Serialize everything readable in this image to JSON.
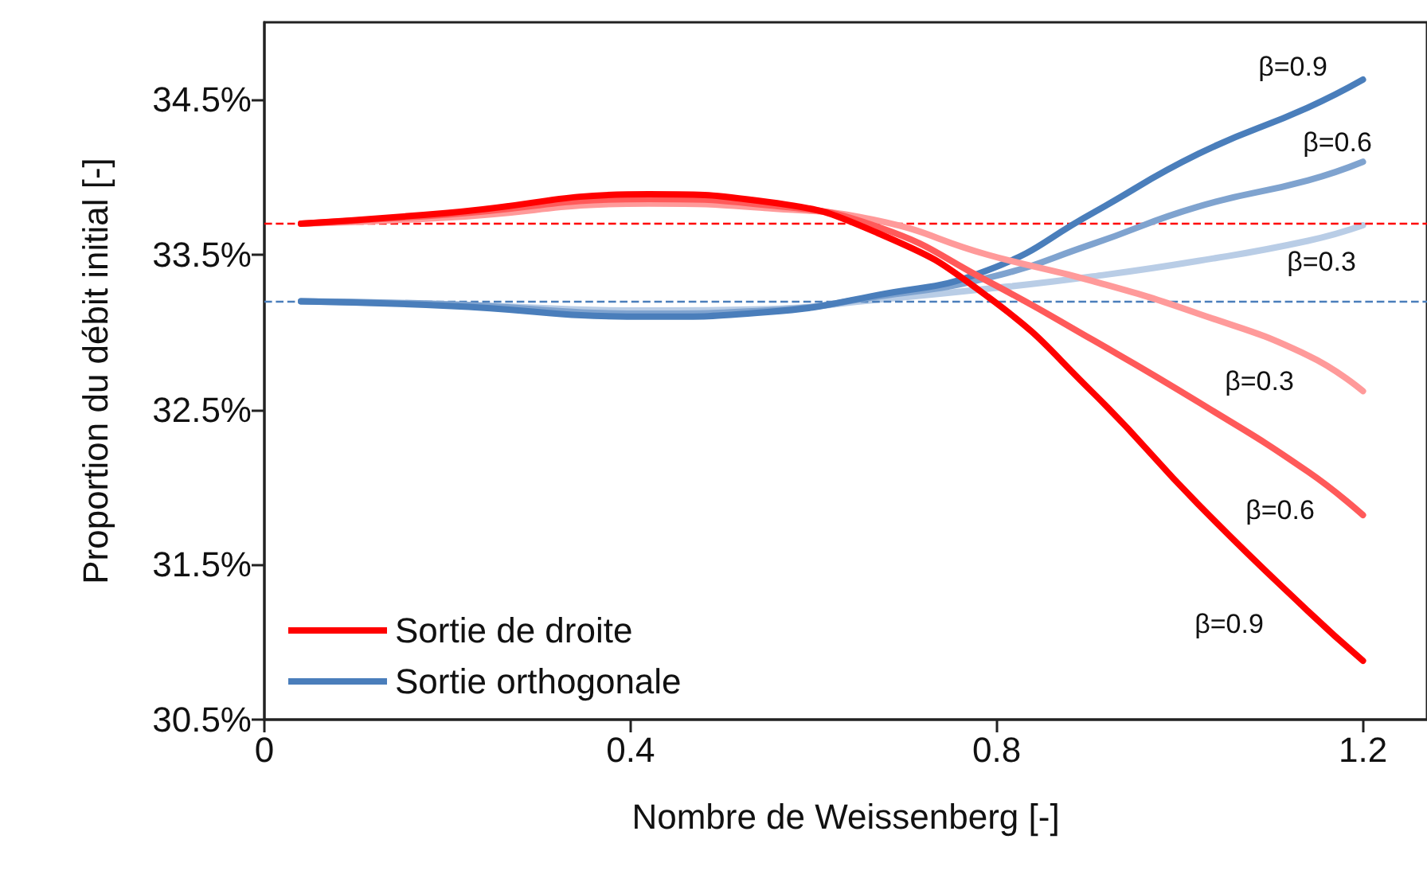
{
  "chart_data": {
    "type": "line",
    "xlabel": "Nombre de Weissenberg [-]",
    "ylabel": "Proportion du débit initial [-]",
    "x": [
      0.04,
      0.2,
      0.42,
      0.55,
      0.67,
      0.79,
      0.905,
      1.02,
      1.14,
      1.2
    ],
    "series": [
      {
        "name": "Sortie de droite",
        "color": "#ff0000",
        "values": [
          33.7,
          33.77,
          33.89,
          33.84,
          33.64,
          33.23,
          32.61,
          31.89,
          31.2,
          30.88
        ]
      },
      {
        "color": "#ff5a5a",
        "values": [
          33.7,
          33.76,
          33.86,
          33.82,
          33.68,
          33.33,
          32.95,
          32.55,
          32.1,
          31.82
        ]
      },
      {
        "color": "#ff9a9a",
        "values": [
          33.7,
          33.74,
          33.83,
          33.8,
          33.72,
          33.5,
          33.33,
          33.12,
          32.85,
          32.62
        ]
      },
      {
        "name": "Sortie orthogonale",
        "color": "#4a7ebb",
        "values": [
          33.2,
          33.17,
          33.1,
          33.13,
          33.24,
          33.4,
          33.77,
          34.15,
          34.45,
          34.63
        ]
      },
      {
        "color": "#7fa3cf",
        "values": [
          33.2,
          33.18,
          33.12,
          33.14,
          33.23,
          33.35,
          33.57,
          33.81,
          33.98,
          34.1
        ]
      },
      {
        "color": "#b9cde6",
        "values": [
          33.2,
          33.18,
          33.14,
          33.15,
          33.21,
          33.28,
          33.36,
          33.46,
          33.59,
          33.69
        ]
      }
    ],
    "xlim": [
      0,
      1.27
    ],
    "xticks": [
      0,
      0.4,
      0.8,
      1.2
    ],
    "ylim": [
      30.5,
      35
    ],
    "yticks": [
      {
        "value": 30.5,
        "label": "30.5%"
      },
      {
        "value": 31.5,
        "label": "31.5%"
      },
      {
        "value": 32.5,
        "label": "32.5%"
      },
      {
        "value": 33.5,
        "label": "33.5%"
      },
      {
        "value": 34.5,
        "label": "34.5%"
      }
    ],
    "ref_lines": [
      {
        "axis": "y",
        "value": 33.7,
        "color": "#ff0000",
        "line_style": "dashed"
      },
      {
        "axis": "y",
        "value": 33.2,
        "color": "#4a7ebb",
        "line_style": "dashed"
      }
    ],
    "annotations": [
      "β=0.9",
      "β=0.6",
      "β=0.3",
      "β=0.9",
      "β=0.6",
      "β=0.3"
    ],
    "legend": "bottom left",
    "grid": false,
    "marker": "none",
    "line_style": "solid"
  }
}
